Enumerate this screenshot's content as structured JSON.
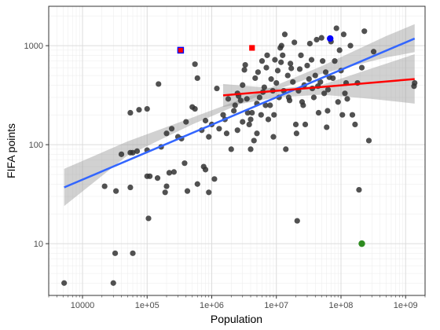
{
  "chart_data": {
    "type": "scatter",
    "title": "",
    "xlabel": "Population",
    "ylabel": "FIFA points",
    "x_scale": "log",
    "y_scale": "log",
    "xlim": [
      3000,
      2000000000
    ],
    "ylim": [
      3,
      2500
    ],
    "x_ticks": [
      {
        "value": 10000,
        "label": "10000"
      },
      {
        "value": 100000,
        "label": "1e+05"
      },
      {
        "value": 1000000,
        "label": "1e+06"
      },
      {
        "value": 10000000,
        "label": "1e+07"
      },
      {
        "value": 100000000,
        "label": "1e+08"
      },
      {
        "value": 1000000000,
        "label": "1e+09"
      }
    ],
    "y_ticks": [
      {
        "value": 10,
        "label": "10"
      },
      {
        "value": 100,
        "label": "100"
      },
      {
        "value": 1000,
        "label": "1000"
      }
    ],
    "grid": true,
    "legend": "none",
    "colors": {
      "points": "#333333",
      "fit_all": "#3366ff",
      "fit_subset": "#ff0000",
      "band": "#999999",
      "highlight_blue": "#0000ff",
      "highlight_red": "#ff0000",
      "highlight_green": "#2e8b20",
      "highlight_square_border": "#0000ff"
    },
    "series": [
      {
        "style": "points",
        "points": [
          [
            5200,
            4
          ],
          [
            30000,
            4
          ],
          [
            32000,
            8
          ],
          [
            60000,
            8
          ],
          [
            105000,
            18
          ],
          [
            33000,
            34
          ],
          [
            55000,
            37
          ],
          [
            22000,
            38
          ],
          [
            55000,
            83
          ],
          [
            60000,
            83
          ],
          [
            40000,
            80
          ],
          [
            70000,
            86
          ],
          [
            100000,
            88
          ],
          [
            165000,
            95
          ],
          [
            100000,
            48
          ],
          [
            110000,
            48
          ],
          [
            145000,
            46
          ],
          [
            190000,
            33
          ],
          [
            200000,
            38
          ],
          [
            220000,
            52
          ],
          [
            260000,
            53
          ],
          [
            340000,
            115
          ],
          [
            380000,
            65
          ],
          [
            420000,
            34
          ],
          [
            600000,
            40
          ],
          [
            750000,
            60
          ],
          [
            800000,
            56
          ],
          [
            900000,
            33
          ],
          [
            1100000,
            45
          ],
          [
            55000,
            210
          ],
          [
            75000,
            225
          ],
          [
            100000,
            230
          ],
          [
            150000,
            410
          ],
          [
            200000,
            130
          ],
          [
            240000,
            145
          ],
          [
            300000,
            120
          ],
          [
            400000,
            170
          ],
          [
            500000,
            240
          ],
          [
            550000,
            230
          ],
          [
            600000,
            470
          ],
          [
            550000,
            650
          ],
          [
            700000,
            140
          ],
          [
            800000,
            175
          ],
          [
            900000,
            120
          ],
          [
            1000000,
            160
          ],
          [
            1200000,
            370
          ],
          [
            1300000,
            145
          ],
          [
            1500000,
            200
          ],
          [
            1600000,
            180
          ],
          [
            1700000,
            130
          ],
          [
            1800000,
            290
          ],
          [
            2000000,
            90
          ],
          [
            2200000,
            220
          ],
          [
            2300000,
            250
          ],
          [
            2500000,
            330
          ],
          [
            2600000,
            310
          ],
          [
            2800000,
            280
          ],
          [
            3000000,
            400
          ],
          [
            3200000,
            570
          ],
          [
            3300000,
            640
          ],
          [
            3500000,
            290
          ],
          [
            3600000,
            210
          ],
          [
            3800000,
            160
          ],
          [
            4000000,
            90
          ],
          [
            4200000,
            210
          ],
          [
            4500000,
            110
          ],
          [
            4700000,
            470
          ],
          [
            5000000,
            130
          ],
          [
            5000000,
            260
          ],
          [
            5200000,
            540
          ],
          [
            5500000,
            300
          ],
          [
            5800000,
            200
          ],
          [
            6000000,
            700
          ],
          [
            6200000,
            340
          ],
          [
            6500000,
            380
          ],
          [
            7000000,
            600
          ],
          [
            7200000,
            800
          ],
          [
            7500000,
            180
          ],
          [
            8000000,
            250
          ],
          [
            8300000,
            460
          ],
          [
            8800000,
            350
          ],
          [
            9000000,
            120
          ],
          [
            9500000,
            720
          ],
          [
            10000000,
            420
          ],
          [
            10500000,
            560
          ],
          [
            11000000,
            300
          ],
          [
            11500000,
            950
          ],
          [
            11800000,
            680
          ],
          [
            12000000,
            1000
          ],
          [
            12500000,
            800
          ],
          [
            13000000,
            350
          ],
          [
            13500000,
            1300
          ],
          [
            14000000,
            90
          ],
          [
            15000000,
            500
          ],
          [
            16000000,
            280
          ],
          [
            16500000,
            660
          ],
          [
            17000000,
            590
          ],
          [
            18000000,
            430
          ],
          [
            19000000,
            1080
          ],
          [
            20000000,
            160
          ],
          [
            20500000,
            130
          ],
          [
            21000000,
            17
          ],
          [
            22000000,
            350
          ],
          [
            23000000,
            580
          ],
          [
            24000000,
            800
          ],
          [
            26000000,
            250
          ],
          [
            27000000,
            400
          ],
          [
            28000000,
            160
          ],
          [
            30000000,
            630
          ],
          [
            32000000,
            460
          ],
          [
            33000000,
            1050
          ],
          [
            35000000,
            720
          ],
          [
            38000000,
            300
          ],
          [
            40000000,
            500
          ],
          [
            42000000,
            1150
          ],
          [
            45000000,
            210
          ],
          [
            48000000,
            430
          ],
          [
            50000000,
            1200
          ],
          [
            52000000,
            700
          ],
          [
            55000000,
            330
          ],
          [
            58000000,
            540
          ],
          [
            60000000,
            150
          ],
          [
            63000000,
            360
          ],
          [
            66000000,
            480
          ],
          [
            70000000,
            1100
          ],
          [
            75000000,
            470
          ],
          [
            80000000,
            700
          ],
          [
            85000000,
            1500
          ],
          [
            95000000,
            900
          ],
          [
            100000000,
            560
          ],
          [
            105000000,
            200
          ],
          [
            110000000,
            1300
          ],
          [
            115000000,
            330
          ],
          [
            120000000,
            420
          ],
          [
            125000000,
            290
          ],
          [
            140000000,
            1000
          ],
          [
            150000000,
            200
          ],
          [
            165000000,
            160
          ],
          [
            180000000,
            420
          ],
          [
            190000000,
            35
          ],
          [
            210000000,
            600
          ],
          [
            230000000,
            1400
          ],
          [
            270000000,
            110
          ],
          [
            320000000,
            870
          ],
          [
            1350000000,
            390
          ],
          [
            1380000000,
            420
          ],
          [
            2500000,
            140
          ],
          [
            3000000,
            170
          ],
          [
            4000000,
            180
          ],
          [
            6800000,
            250
          ],
          [
            9200000,
            200
          ],
          [
            15500000,
            300
          ],
          [
            25000000,
            270
          ],
          [
            36000000,
            370
          ],
          [
            44000000,
            390
          ],
          [
            62000000,
            220
          ],
          [
            90000000,
            270
          ]
        ]
      },
      {
        "style": "highlight",
        "points": [
          {
            "x": 4200000,
            "y": 950,
            "color": "#ff0000",
            "marker": "square"
          },
          {
            "x": 330000,
            "y": 900,
            "color": "#ff0000",
            "marker": "square-outlined"
          },
          {
            "x": 68000000,
            "y": 1180,
            "color": "#0000ff",
            "marker": "circle"
          },
          {
            "x": 210000000,
            "y": 10,
            "color": "#2e8b20",
            "marker": "circle"
          }
        ]
      },
      {
        "style": "fit_line",
        "color": "#3366ff",
        "x": [
          5200,
          1380000000
        ],
        "y": [
          37,
          1180
        ]
      },
      {
        "style": "confidence_band",
        "color": "#999999",
        "x": [
          5200,
          50000,
          500000,
          5000000,
          50000000,
          500000000,
          1380000000
        ],
        "y_low": [
          24,
          78,
          160,
          305,
          520,
          760,
          860
        ],
        "y_high": [
          57,
          108,
          188,
          330,
          620,
          1250,
          1650
        ]
      },
      {
        "style": "fit_line",
        "color": "#ff0000",
        "x": [
          1500000,
          1380000000
        ],
        "y": [
          315,
          460
        ]
      },
      {
        "style": "confidence_band",
        "color": "#999999",
        "x": [
          1500000,
          10000000,
          50000000,
          300000000,
          1380000000
        ],
        "y_low": [
          240,
          300,
          320,
          290,
          260
        ],
        "y_high": [
          410,
          370,
          400,
          590,
          820
        ]
      }
    ]
  }
}
